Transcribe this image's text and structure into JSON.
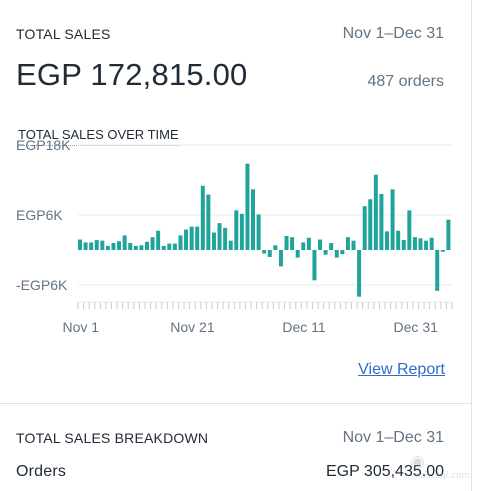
{
  "summary": {
    "title": "TOTAL SALES",
    "date_range": "Nov 1–Dec 31",
    "amount": "EGP 172,815.00",
    "orders": "487 orders"
  },
  "chart_section": {
    "title": "TOTAL SALES OVER TIME",
    "view_report": "View Report"
  },
  "breakdown": {
    "title": "TOTAL SALES BREAKDOWN",
    "date_range": "Nov 1–Dec 31",
    "row_label": "Orders",
    "row_value": "EGP 305,435.00"
  },
  "watermark": {
    "icon": "mostaql-logo",
    "text": "mostaql.com"
  },
  "colors": {
    "bar": "#1fa39a",
    "link": "#2c6ecb",
    "muted_text": "#637381",
    "grid": "#e8ebee"
  },
  "chart_data": {
    "type": "bar",
    "title": "TOTAL SALES OVER TIME",
    "y_tick_labels": [
      "EGP18K",
      "EGP6K",
      "-EGP6K"
    ],
    "y_tick_values": [
      18000,
      6000,
      -6000
    ],
    "x_tick_labels": [
      "Nov 1",
      "Nov 21",
      "Dec 11",
      "Dec 31"
    ],
    "ylim": [
      -9000,
      18000
    ],
    "grid": true,
    "series": [
      {
        "values": [
          1800,
          1300,
          1300,
          1700,
          1600,
          700,
          1200,
          1500,
          2500,
          1200,
          700,
          800,
          1400,
          2200,
          3300,
          700,
          1100,
          1100,
          2500,
          3500,
          4000,
          4000,
          11000,
          9500,
          3000,
          4600,
          3800,
          1600,
          6800,
          6200,
          14800,
          10400,
          6100,
          -600,
          -1200,
          800,
          -2800,
          2400,
          2200,
          -1300,
          1300,
          2100,
          -5200,
          1800,
          -800,
          1200,
          -1300,
          -700,
          2200,
          1600,
          -8000,
          7500,
          8700,
          12900,
          9600,
          3200,
          10400,
          3300,
          1700,
          6800,
          2200,
          2000,
          1600,
          2100,
          -7000,
          -300,
          5200
        ]
      }
    ]
  }
}
